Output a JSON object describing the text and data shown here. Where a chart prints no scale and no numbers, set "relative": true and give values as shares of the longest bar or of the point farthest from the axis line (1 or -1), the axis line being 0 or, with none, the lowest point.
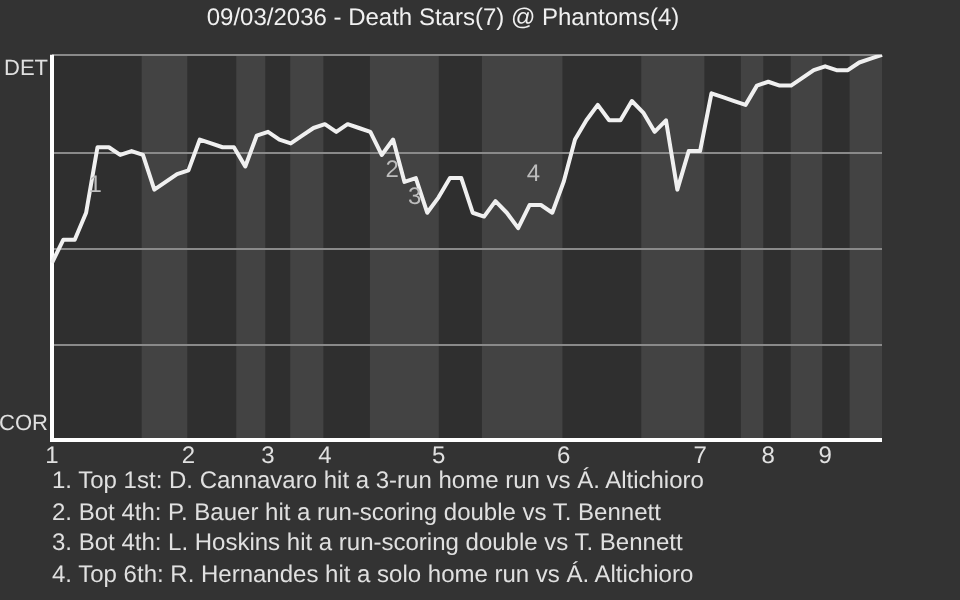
{
  "chart_data": {
    "type": "line",
    "title": "09/03/2036 - Death Stars(7) @ Phantoms(4)",
    "categories": [
      "1",
      null,
      null,
      null,
      null,
      null,
      null,
      null,
      null,
      null,
      null,
      null,
      "2",
      null,
      null,
      null,
      null,
      null,
      null,
      "3",
      null,
      null,
      null,
      null,
      "4",
      null,
      null,
      null,
      null,
      null,
      null,
      null,
      null,
      null,
      "5",
      null,
      null,
      null,
      null,
      null,
      null,
      null,
      null,
      null,
      null,
      "6",
      null,
      null,
      null,
      null,
      null,
      null,
      null,
      null,
      null,
      null,
      null,
      "7",
      null,
      null,
      null,
      null,
      null,
      "8",
      null,
      null,
      null,
      null,
      "9",
      null,
      null,
      null,
      null,
      null
    ],
    "relative": true,
    "grid": "y",
    "series": [
      {
        "color": "#f0f0f0",
        "values": [
          0.46,
          0.52,
          0.52,
          0.59,
          0.76,
          0.76,
          0.74,
          0.75,
          0.74,
          0.65,
          0.67,
          0.69,
          0.7,
          0.78,
          0.77,
          0.76,
          0.76,
          0.71,
          0.79,
          0.8,
          0.78,
          0.77,
          0.79,
          0.81,
          0.82,
          0.8,
          0.82,
          0.81,
          0.8,
          0.74,
          0.78,
          0.67,
          0.68,
          0.59,
          0.63,
          0.68,
          0.68,
          0.59,
          0.58,
          0.62,
          0.59,
          0.55,
          0.61,
          0.61,
          0.59,
          0.67,
          0.78,
          0.83,
          0.87,
          0.83,
          0.83,
          0.88,
          0.85,
          0.8,
          0.83,
          0.65,
          0.75,
          0.75,
          0.9,
          0.89,
          0.88,
          0.87,
          0.92,
          0.93,
          0.92,
          0.92,
          0.94,
          0.96,
          0.97,
          0.96,
          0.96,
          0.98,
          0.99,
          1
        ]
      }
    ],
    "annotations": [
      "DET",
      "COR",
      "1",
      "2",
      "3",
      "4",
      "1. Top 1st: D. Cannavaro hit a 3-run home run vs Á. Altichioro",
      "2. Bot 4th: P. Bauer hit a run-scoring double vs T. Bennett",
      "3. Bot 4th: L. Hoskins hit a run-scoring double vs T. Bennett",
      "4. Top 6th: R. Hernandes hit a solo home run vs Á. Altichioro"
    ]
  }
}
